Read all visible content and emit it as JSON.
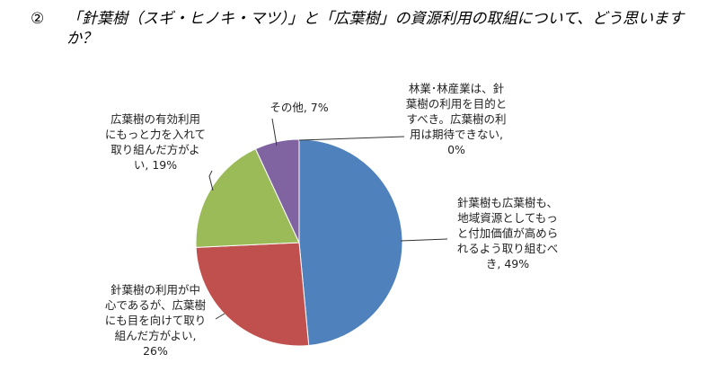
{
  "question": {
    "number": "②",
    "text": "「針葉樹（スギ・ヒノキ・マツ）」と「広葉樹」の資源利用の取組について、どう思いますか？"
  },
  "chart_data": {
    "type": "pie",
    "slices": [
      {
        "label": "林業･林産業は、針葉樹の利用を目的とすべき。広葉樹の利用は期待できない",
        "value": 0,
        "color": "#5b7fbd"
      },
      {
        "label": "針葉樹も広葉樹も、地域資源としてもっと付加価値が高められるよう取り組むべき",
        "value": 49,
        "color": "#4f81bd"
      },
      {
        "label": "針葉樹の利用が中心であるが、広葉樹にも目を向けて取り組んだ方がよい",
        "value": 26,
        "color": "#c0504d"
      },
      {
        "label": "広葉樹の有効利用にもっと力を入れて取り組んだ方がよい",
        "value": 19,
        "color": "#9bbb59"
      },
      {
        "label": "その他",
        "value": 7,
        "color": "#8064a2"
      }
    ],
    "data_labels": [
      [
        "林業･林産業は、針",
        "葉樹の利用を目的と",
        "すべき。広葉樹の利",
        "用は期待できない,",
        "0%"
      ],
      [
        "針葉樹も広葉樹も、",
        "地域資源としてもっ",
        "と付加価値が高めら",
        "れるよう取り組むべ",
        "き, 49%"
      ],
      [
        "針葉樹の利用が中",
        "心であるが、広葉樹",
        "にも目を向けて取り",
        "組んだ方がよい,",
        "26%"
      ],
      [
        "広葉樹の有効利用",
        "にもっと力を入れて",
        "取り組んだ方がよ",
        "い, 19%"
      ],
      [
        "その他, 7%"
      ]
    ]
  }
}
